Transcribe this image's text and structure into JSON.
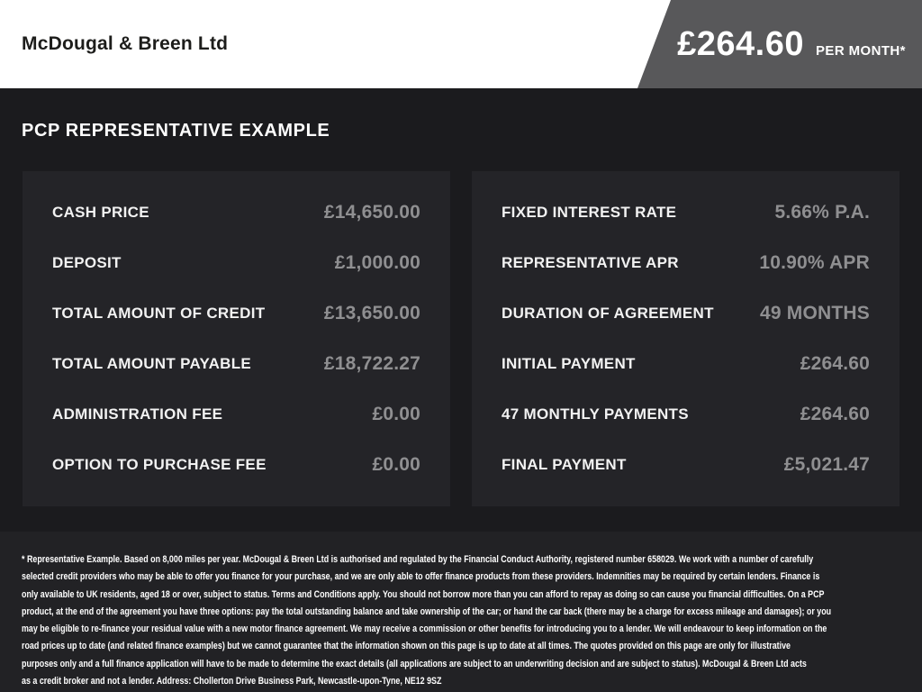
{
  "header": {
    "brand": "McDougal & Breen Ltd",
    "price": "£264.60",
    "price_suffix": "PER MONTH*"
  },
  "main": {
    "heading": "PCP REPRESENTATIVE EXAMPLE",
    "left_panel": {
      "rows": [
        {
          "label": "CASH PRICE",
          "value": "£14,650.00"
        },
        {
          "label": "DEPOSIT",
          "value": "£1,000.00"
        },
        {
          "label": "TOTAL AMOUNT OF CREDIT",
          "value": "£13,650.00"
        },
        {
          "label": "TOTAL AMOUNT PAYABLE",
          "value": "£18,722.27"
        },
        {
          "label": "ADMINISTRATION FEE",
          "value": "£0.00"
        },
        {
          "label": "OPTION TO PURCHASE FEE",
          "value": "£0.00"
        }
      ]
    },
    "right_panel": {
      "rows": [
        {
          "label": "FIXED INTEREST RATE",
          "value": "5.66% P.A."
        },
        {
          "label": "REPRESENTATIVE APR",
          "value": "10.90% APR"
        },
        {
          "label": "DURATION OF AGREEMENT",
          "value": "49 MONTHS"
        },
        {
          "label": "INITIAL PAYMENT",
          "value": "£264.60"
        },
        {
          "label": "47 MONTHLY PAYMENTS",
          "value": "£264.60"
        },
        {
          "label": "FINAL PAYMENT",
          "value": "£5,021.47"
        }
      ]
    }
  },
  "footer": {
    "lines": [
      "* Representative Example. Based on 8,000 miles per year. McDougal & Breen Ltd is authorised and regulated by the Financial Conduct Authority, registered number 658029. We work with a number of carefully",
      "selected credit providers who may be able to offer you finance for your purchase, and we are only able to offer finance products from these providers. Indemnities may be required by certain lenders. Finance is",
      "only available to UK residents, aged 18 or over, subject to status. Terms and Conditions apply. You should not borrow more than you can afford to repay as doing so can cause you financial difficulties. On a PCP",
      "product, at the end of the agreement you have three options: pay the total outstanding balance and take ownership of the car; or hand the car back (there may be a charge for excess mileage and damages); or you",
      "may be eligible to re-finance your residual value with a new motor finance agreement. We may receive a commission or other benefits for introducing you to a lender. We will endeavour to keep information on the",
      "road prices up to date (and related finance examples) but we cannot guarantee that the information shown on this page is up to date at all times. The quotes provided on this page are only for illustrative",
      "purposes only and a full finance application will have to be made to determine the exact details (all applications are subject to an underwriting decision and are subject to status). McDougal & Breen Ltd acts",
      "as a credit broker and not a lender. Address: Chollerton Drive Business Park, Newcastle-upon-Tyne, NE12 9SZ"
    ]
  },
  "colors": {
    "ribbon_bg": "#58585a",
    "page_bg": "#1b1b1e",
    "panel_bg": "#242428",
    "value_text": "#8f8f91",
    "footer_bg": "#222225",
    "header_bg": "#ffffff"
  }
}
